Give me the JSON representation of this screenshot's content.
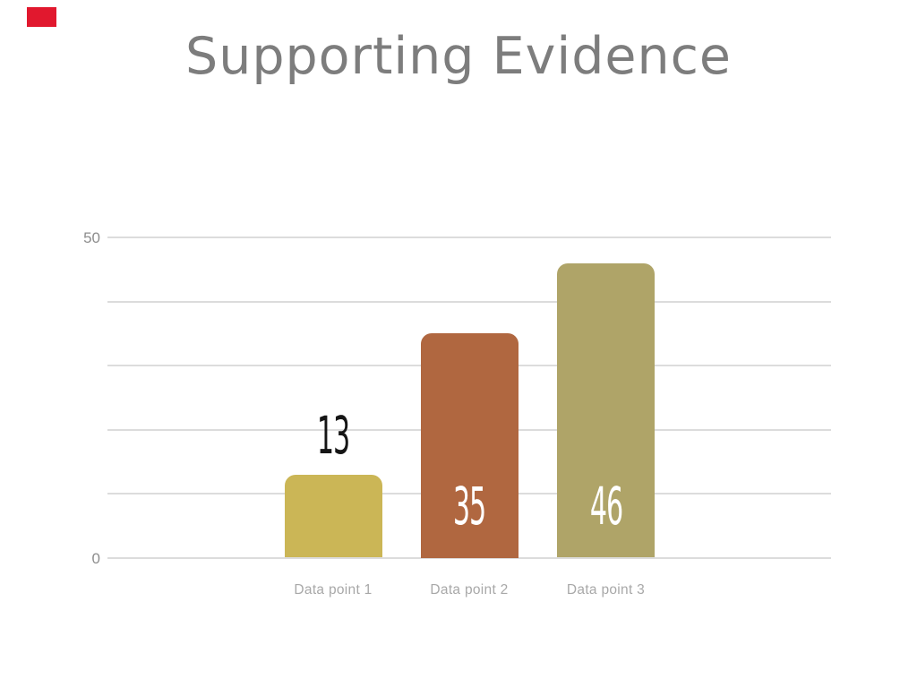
{
  "slide": {
    "title": "Supporting Evidence"
  },
  "accent_marker": {
    "color": "#e1182e"
  },
  "colors": {
    "background": "#ffffff",
    "title": "#7d7d7d",
    "gridline": "#dcdcdc",
    "axis_tick": "#8d8d8d",
    "category_label": "#a8a8a8"
  },
  "chart_data": {
    "type": "bar",
    "title": "Supporting Evidence",
    "xlabel": "",
    "ylabel": "",
    "categories": [
      "Data point 1",
      "Data point 2",
      "Data point 3"
    ],
    "values": [
      13,
      35,
      46
    ],
    "value_labels": [
      "13",
      "35",
      "46"
    ],
    "bar_colors": [
      "#cbb656",
      "#b06740",
      "#afa468"
    ],
    "value_label_colors": [
      "#151515",
      "#ffffff",
      "#ffffff"
    ],
    "value_label_placement": [
      "above",
      "inside",
      "inside"
    ],
    "ylim": [
      0,
      50
    ],
    "gridline_values": [
      0,
      10,
      20,
      30,
      40,
      50
    ],
    "yticks": [
      {
        "value": 50,
        "label": "50"
      },
      {
        "value": 0,
        "label": "0"
      }
    ],
    "grid": true,
    "legend_position": "none"
  }
}
